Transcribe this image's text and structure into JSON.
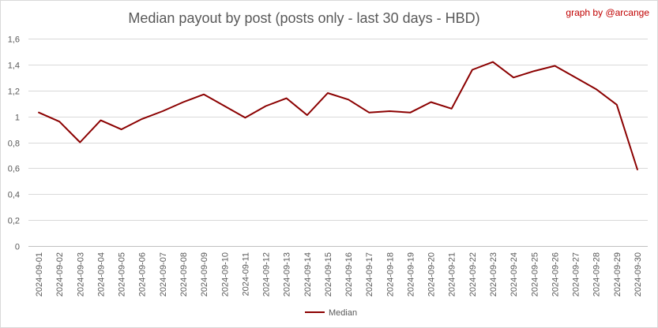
{
  "credit": "graph by @arcange",
  "chart_data": {
    "type": "line",
    "title": "Median payout by post (posts only - last 30 days - HBD)",
    "xlabel": "",
    "ylabel": "",
    "ylim": [
      0,
      1.6
    ],
    "yticks": [
      "0",
      "0,2",
      "0,4",
      "0,6",
      "0,8",
      "1",
      "1,2",
      "1,4",
      "1,6"
    ],
    "grid": true,
    "legend_position": "bottom",
    "categories": [
      "2024-09-01",
      "2024-09-02",
      "2024-09-03",
      "2024-09-04",
      "2024-09-05",
      "2024-09-06",
      "2024-09-07",
      "2024-09-08",
      "2024-09-09",
      "2024-09-10",
      "2024-09-11",
      "2024-09-12",
      "2024-09-13",
      "2024-09-14",
      "2024-09-15",
      "2024-09-16",
      "2024-09-17",
      "2024-09-18",
      "2024-09-19",
      "2024-09-20",
      "2024-09-21",
      "2024-09-22",
      "2024-09-23",
      "2024-09-24",
      "2024-09-25",
      "2024-09-26",
      "2024-09-27",
      "2024-09-28",
      "2024-09-29",
      "2024-09-30"
    ],
    "series": [
      {
        "name": "Median",
        "color": "#8b0000",
        "values": [
          1.03,
          0.96,
          0.8,
          0.97,
          0.9,
          0.98,
          1.04,
          1.11,
          1.17,
          1.08,
          0.99,
          1.08,
          1.14,
          1.01,
          1.18,
          1.13,
          1.03,
          1.04,
          1.03,
          1.11,
          1.06,
          1.36,
          1.42,
          1.3,
          1.35,
          1.39,
          1.3,
          1.21,
          1.09,
          0.59
        ]
      }
    ]
  }
}
